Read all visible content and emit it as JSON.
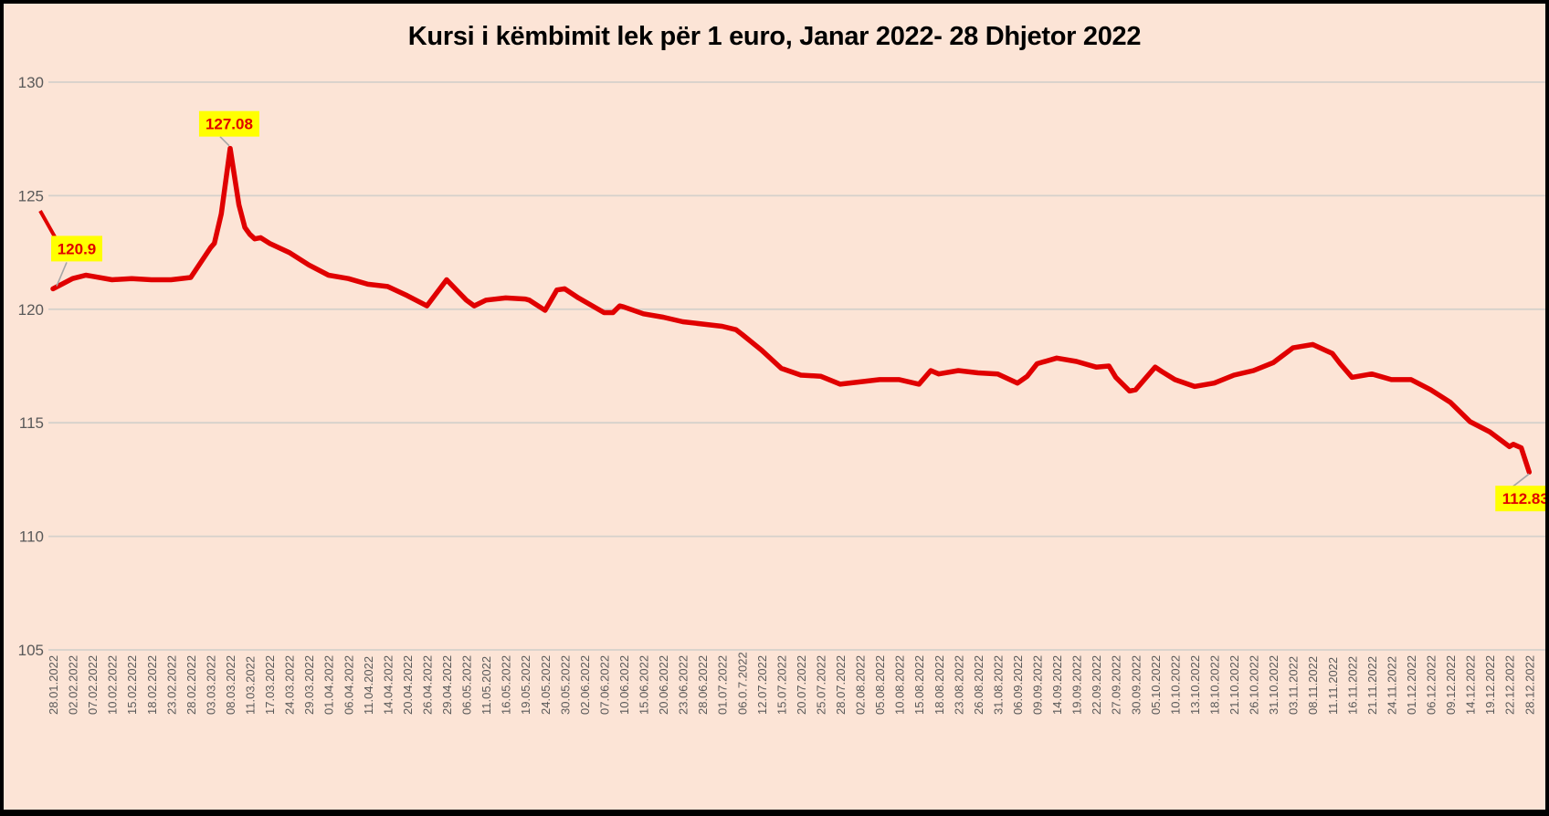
{
  "chart_data": {
    "type": "line",
    "title": "Kursi i këmbimit lek për 1 euro, Janar 2022- 28 Dhjetor 2022",
    "xlabel": "",
    "ylabel": "",
    "ylim": [
      105,
      130
    ],
    "yticks": [
      130,
      125,
      120,
      115,
      110,
      105
    ],
    "grid": "horizontal",
    "legend": "none",
    "categories": [
      "28.01.2022",
      "02.02.2022",
      "07.02.2022",
      "10.02.2022",
      "15.02.2022",
      "18.02.2022",
      "23.02.2022",
      "28.02.2022",
      "03.03.2022",
      "08.03.2022",
      "11.03.2022",
      "17.03.2022",
      "24.03.2022",
      "29.03.2022",
      "01.04.2022",
      "06.04.2022",
      "11.04.2022",
      "14.04.2022",
      "20.04.2022",
      "26.04.2022",
      "29.04.2022",
      "06.05.2022",
      "11.05.2022",
      "16.05.2022",
      "19.05.2022",
      "24.05.2022",
      "30.05.2022",
      "02.06.2022",
      "07.06.2022",
      "10.06.2022",
      "15.06.2022",
      "20.06.2022",
      "23.06.2022",
      "28.06.2022",
      "01.07.2022",
      "06.0.7.2022",
      "12.07.2022",
      "15.07.2022",
      "20.07.2022",
      "25.07.2022",
      "28.07.2022",
      "02.08.2022",
      "05.08.2022",
      "10.08.2022",
      "15.08.2022",
      "18.08.2022",
      "23.08.2022",
      "26.08.2022",
      "31.08.2022",
      "06.09.2022",
      "09.09.2022",
      "14.09.2022",
      "19.09.2022",
      "22.09.2022",
      "27.09.2022",
      "30.09.2022",
      "05.10.2022",
      "10.10.2022",
      "13.10.2022",
      "18.10.2022",
      "21.10.2022",
      "26.10.2022",
      "31.10.2022",
      "03.11.2022",
      "08.11.2022",
      "11.11.2022",
      "16.11.2022",
      "21.11.2022",
      "24.11.2022",
      "01.12.2022",
      "06.12.2022",
      "09.12.2022",
      "14.12.2022",
      "19.12.2022",
      "22.12.2022",
      "28.12.2022"
    ],
    "values": [
      120.9,
      121.35,
      121.45,
      121.3,
      121.35,
      121.3,
      121.3,
      121.4,
      122.7,
      127.08,
      123.3,
      122.9,
      122.5,
      121.95,
      121.5,
      121.35,
      121.1,
      121.0,
      120.6,
      120.15,
      121.3,
      120.4,
      120.4,
      120.5,
      120.45,
      119.95,
      120.9,
      120.35,
      119.85,
      120.1,
      119.8,
      119.65,
      119.45,
      119.35,
      119.25,
      118.9,
      118.2,
      117.4,
      117.1,
      117.05,
      116.7,
      116.8,
      116.9,
      116.9,
      116.7,
      117.15,
      117.3,
      117.2,
      117.15,
      116.75,
      117.6,
      117.85,
      117.7,
      117.45,
      117.0,
      116.45,
      117.45,
      116.9,
      116.6,
      116.75,
      117.1,
      117.3,
      117.65,
      118.3,
      118.45,
      118.05,
      117.0,
      117.15,
      116.9,
      116.9,
      116.45,
      115.9,
      115.05,
      114.6,
      113.95,
      112.83
    ],
    "intermediate_points": [
      [
        1.67,
        121.5
      ],
      [
        8.2,
        122.9
      ],
      [
        8.55,
        124.2
      ],
      [
        9.45,
        124.6
      ],
      [
        9.75,
        123.6
      ],
      [
        10.25,
        123.1
      ],
      [
        10.55,
        123.15
      ],
      [
        21.4,
        120.15
      ],
      [
        24.2,
        120.4
      ],
      [
        25.6,
        120.85
      ],
      [
        26.7,
        120.5
      ],
      [
        28.45,
        119.85
      ],
      [
        28.8,
        120.15
      ],
      [
        34.7,
        119.1
      ],
      [
        44.6,
        117.3
      ],
      [
        49.5,
        117.05
      ],
      [
        53.65,
        117.5
      ],
      [
        54.7,
        116.4
      ],
      [
        56.35,
        117.25
      ],
      [
        65.4,
        117.6
      ],
      [
        74.2,
        114.05
      ],
      [
        74.6,
        113.9
      ]
    ],
    "annotations": [
      {
        "label": "120.9",
        "anchor": "first"
      },
      {
        "label": "127.08",
        "anchor": "peak"
      },
      {
        "label": "112.83",
        "anchor": "last"
      }
    ],
    "colors": {
      "background": "#fce4d6",
      "line": "#e00000",
      "gridline": "#d5d1cb",
      "axis_text": "#595959",
      "title_text": "#000000",
      "annotation_bg": "#ffff00",
      "annotation_text": "#e00000",
      "leader": "#a6a6a6",
      "border": "#000000"
    }
  }
}
